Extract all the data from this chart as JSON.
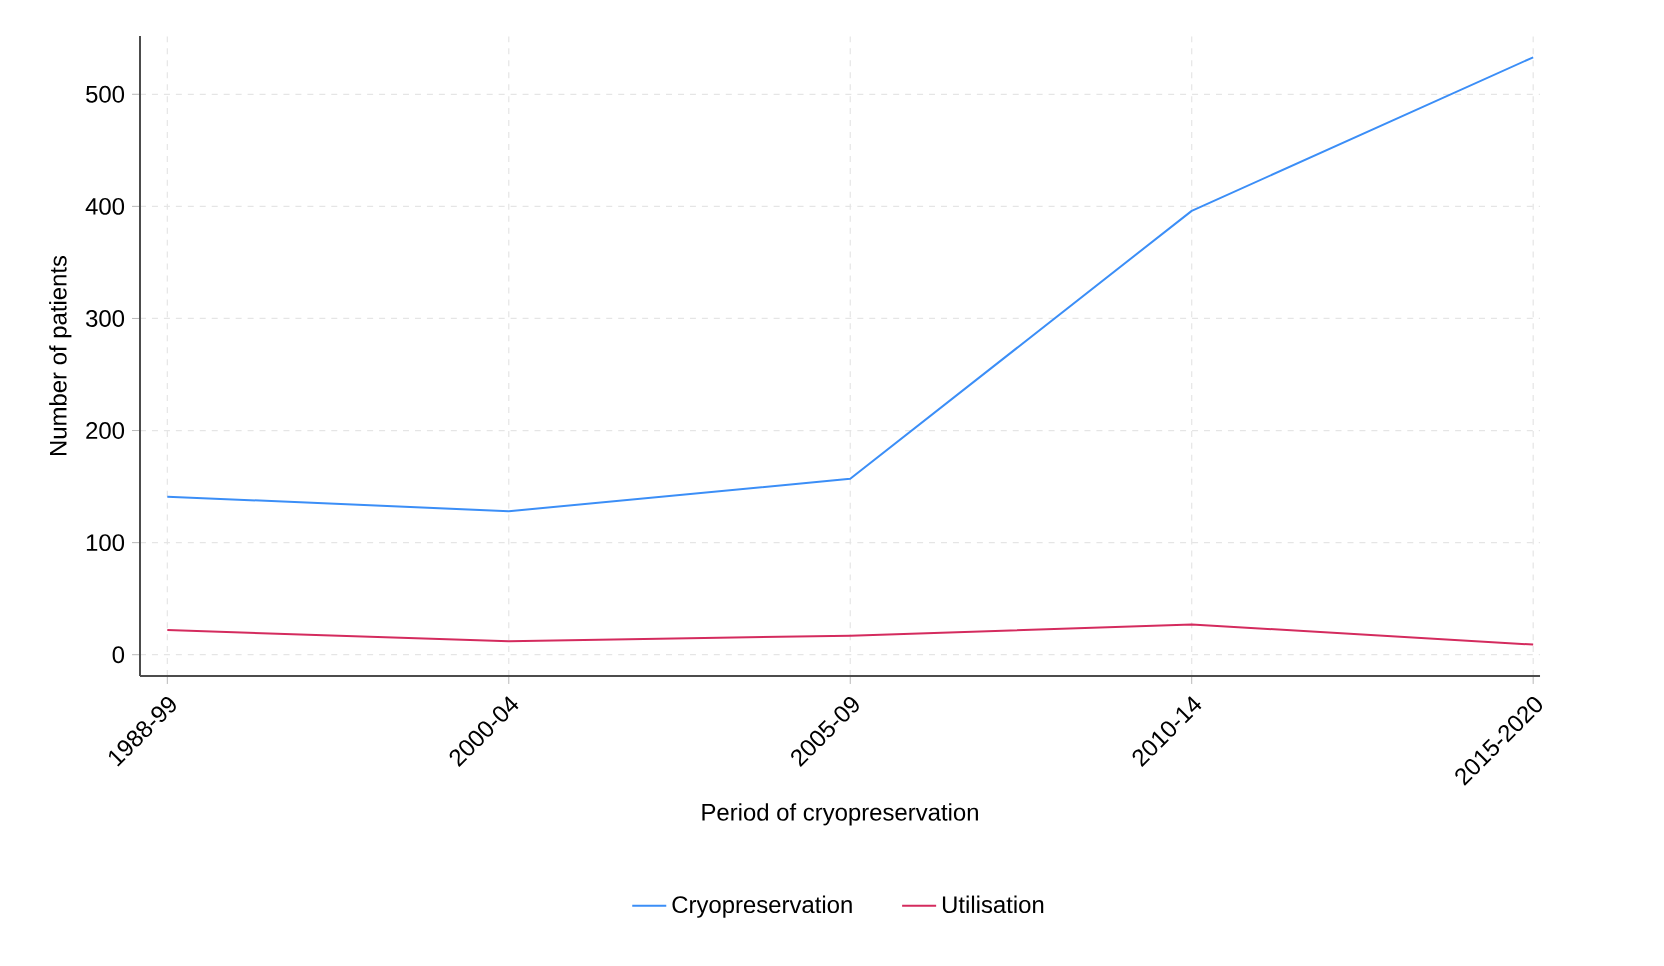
{
  "chart_data": {
    "type": "line",
    "xlabel": "Period of cryopreservation",
    "ylabel": "Number of patients",
    "categories": [
      "1988-99",
      "2000-04",
      "2005-09",
      "2010-14",
      "2015-2020"
    ],
    "series": [
      {
        "name": "Cryopreservation",
        "color": "#3b8ef7",
        "values": [
          141,
          128,
          157,
          396,
          533
        ]
      },
      {
        "name": "Utilisation",
        "color": "#d42b5e",
        "values": [
          22,
          12,
          17,
          27,
          9
        ]
      }
    ],
    "ylim": [
      -19,
      552
    ],
    "yticks": [
      0,
      100,
      200,
      300,
      400,
      500
    ],
    "grid": true,
    "legend": "bottom",
    "marker": "none",
    "line_style": "solid"
  }
}
